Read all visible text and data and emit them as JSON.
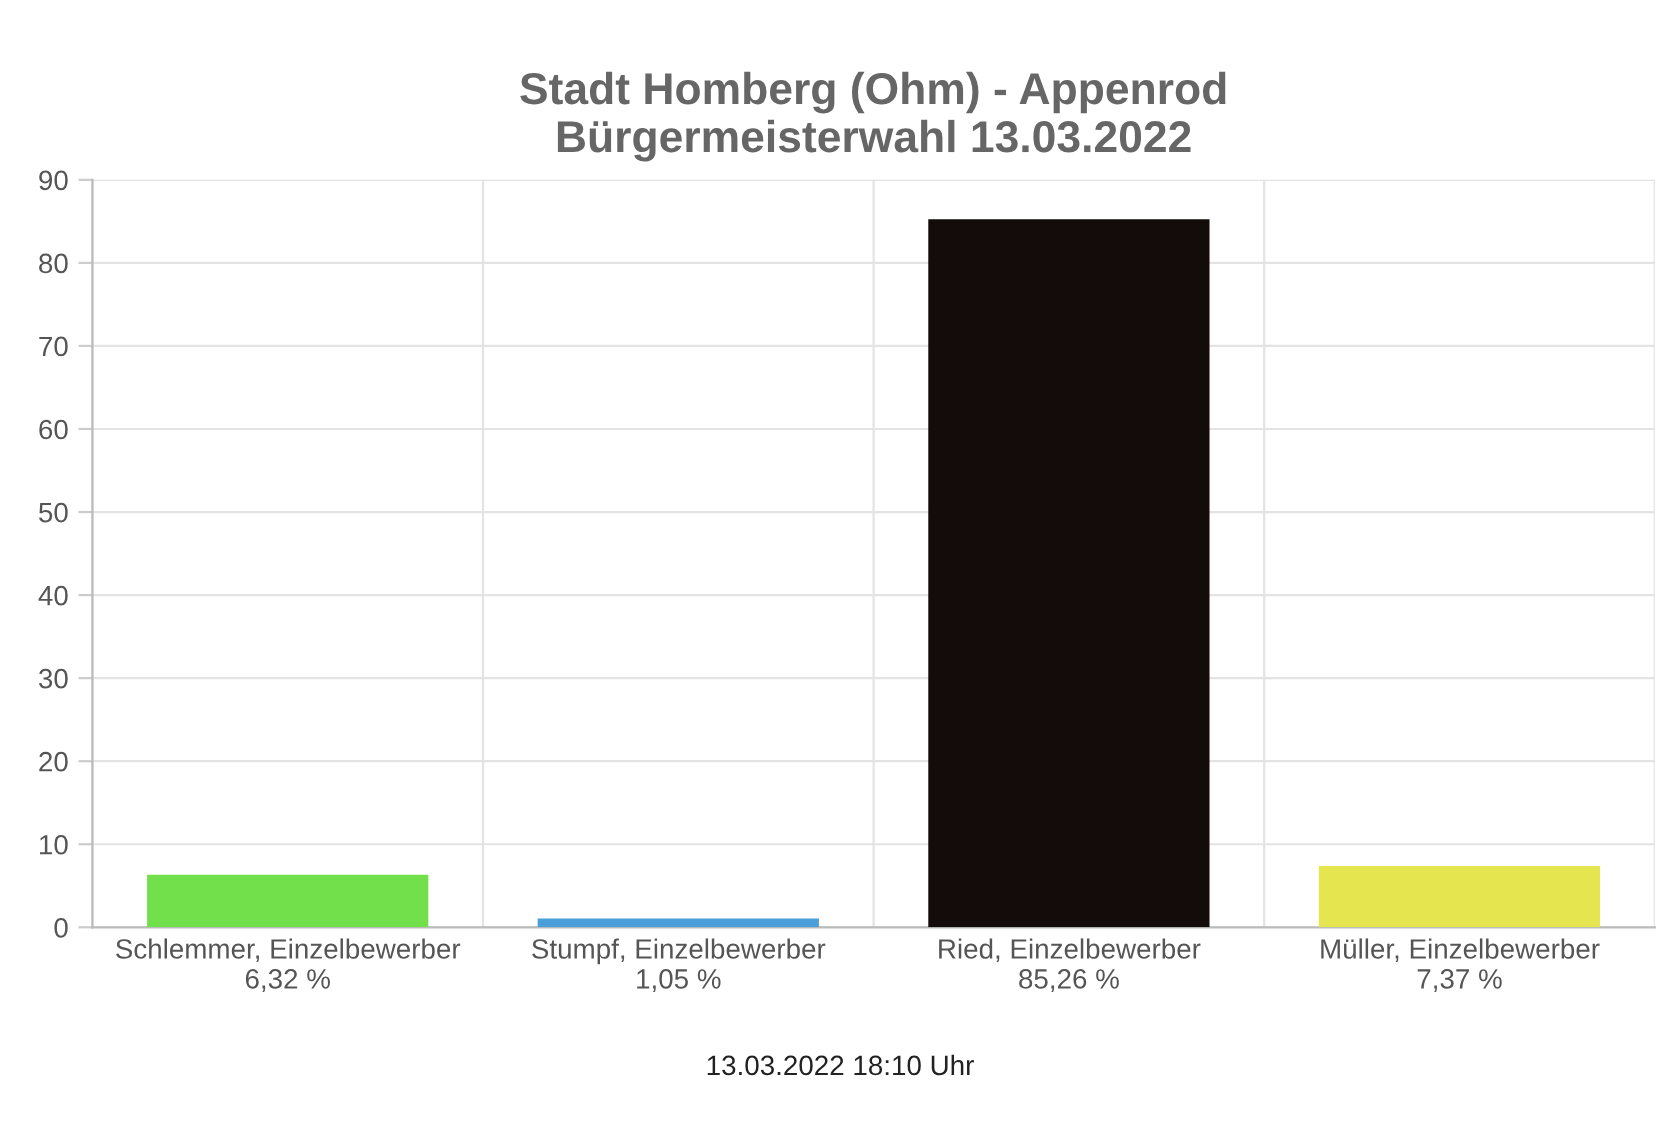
{
  "chart_data": {
    "type": "bar",
    "title": "Stadt Homberg (Ohm) - Appenrod\nBürgermeisterwahl 13.03.2022",
    "categories": [
      "Schlemmer, Einzelbewerber",
      "Stumpf, Einzelbewerber",
      "Ried, Einzelbewerber",
      "Müller, Einzelbewerber"
    ],
    "values": [
      6.32,
      1.05,
      85.26,
      7.37
    ],
    "value_labels": [
      "6,32 %",
      "1,05 %",
      "85,26 %",
      "7,37 %"
    ],
    "colors": [
      "#72e04a",
      "#4a9fd8",
      "#140c0a",
      "#e5e54f"
    ],
    "ylim": [
      0,
      90
    ],
    "yticks": [
      0,
      10,
      20,
      30,
      40,
      50,
      60,
      70,
      80,
      90
    ],
    "grid": true,
    "legend": false,
    "annotations": [
      "13.03.2022 18:10 Uhr"
    ]
  }
}
